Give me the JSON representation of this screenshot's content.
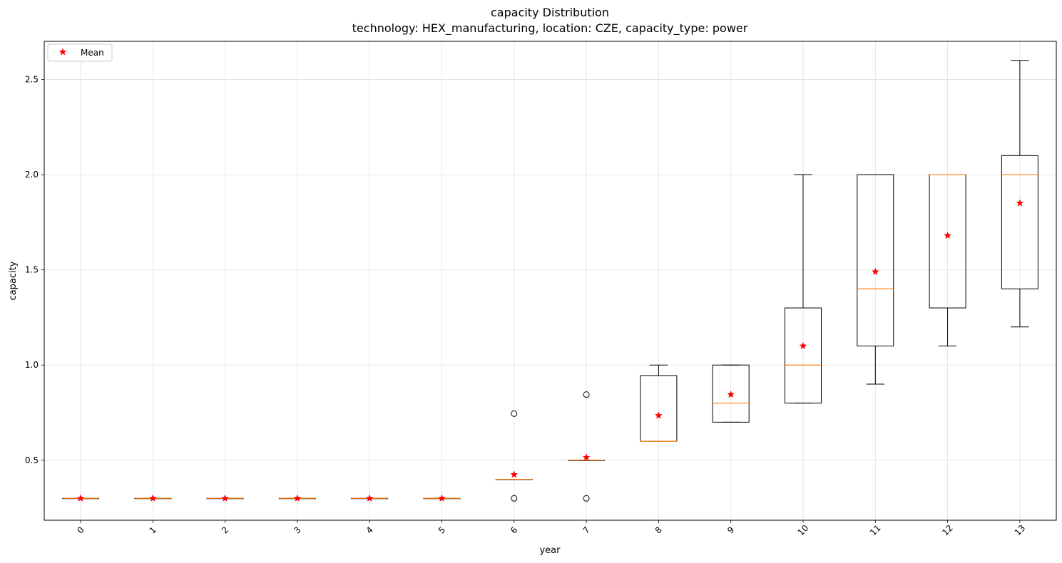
{
  "chart_data": {
    "type": "box",
    "title": "capacity Distribution",
    "subtitle": "technology: HEX_manufacturing, location: CZE, capacity_type: power",
    "xlabel": "year",
    "ylabel": "capacity",
    "categories": [
      "0",
      "1",
      "2",
      "3",
      "4",
      "5",
      "6",
      "7",
      "8",
      "9",
      "10",
      "11",
      "12",
      "13"
    ],
    "y_ticks": [
      "0.5",
      "1.0",
      "1.5",
      "2.0",
      "2.5"
    ],
    "ylim": [
      0.185,
      2.7
    ],
    "grid": true,
    "legend": {
      "position": "top-left",
      "entries": [
        {
          "label": "Mean",
          "marker": "red-star"
        }
      ]
    },
    "colors": {
      "box": "#000000",
      "median": "#ff7f0e",
      "mean": "#ff0000",
      "grid": "#e0e0e0"
    },
    "boxes": [
      {
        "year": "0",
        "whislo": 0.3,
        "q1": 0.3,
        "med": 0.3,
        "q3": 0.3,
        "whishi": 0.3,
        "mean": 0.3,
        "fliers": []
      },
      {
        "year": "1",
        "whislo": 0.3,
        "q1": 0.3,
        "med": 0.3,
        "q3": 0.3,
        "whishi": 0.3,
        "mean": 0.3,
        "fliers": []
      },
      {
        "year": "2",
        "whislo": 0.3,
        "q1": 0.3,
        "med": 0.3,
        "q3": 0.3,
        "whishi": 0.3,
        "mean": 0.3,
        "fliers": []
      },
      {
        "year": "3",
        "whislo": 0.3,
        "q1": 0.3,
        "med": 0.3,
        "q3": 0.3,
        "whishi": 0.3,
        "mean": 0.3,
        "fliers": []
      },
      {
        "year": "4",
        "whislo": 0.3,
        "q1": 0.3,
        "med": 0.3,
        "q3": 0.3,
        "whishi": 0.3,
        "mean": 0.3,
        "fliers": []
      },
      {
        "year": "5",
        "whislo": 0.3,
        "q1": 0.3,
        "med": 0.3,
        "q3": 0.3,
        "whishi": 0.3,
        "mean": 0.3,
        "fliers": []
      },
      {
        "year": "6",
        "whislo": 0.4,
        "q1": 0.4,
        "med": 0.4,
        "q3": 0.4,
        "whishi": 0.4,
        "mean": 0.425,
        "fliers": [
          0.745,
          0.3
        ]
      },
      {
        "year": "7",
        "whislo": 0.5,
        "q1": 0.5,
        "med": 0.5,
        "q3": 0.5,
        "whishi": 0.5,
        "mean": 0.515,
        "fliers": [
          0.845,
          0.3
        ]
      },
      {
        "year": "8",
        "whislo": 0.6,
        "q1": 0.6,
        "med": 0.6,
        "q3": 0.945,
        "whishi": 1.0,
        "mean": 0.735,
        "fliers": []
      },
      {
        "year": "9",
        "whislo": 0.7,
        "q1": 0.7,
        "med": 0.8,
        "q3": 1.0,
        "whishi": 1.0,
        "mean": 0.845,
        "fliers": []
      },
      {
        "year": "10",
        "whislo": 0.8,
        "q1": 0.8,
        "med": 1.0,
        "q3": 1.3,
        "whishi": 2.0,
        "mean": 1.1,
        "fliers": []
      },
      {
        "year": "11",
        "whislo": 0.9,
        "q1": 1.1,
        "med": 1.4,
        "q3": 2.0,
        "whishi": 2.0,
        "mean": 1.49,
        "fliers": []
      },
      {
        "year": "12",
        "whislo": 1.1,
        "q1": 1.3,
        "med": 2.0,
        "q3": 2.0,
        "whishi": 2.0,
        "mean": 1.68,
        "fliers": []
      },
      {
        "year": "13",
        "whislo": 1.2,
        "q1": 1.4,
        "med": 2.0,
        "q3": 2.1,
        "whishi": 2.6,
        "mean": 1.85,
        "fliers": []
      }
    ]
  }
}
